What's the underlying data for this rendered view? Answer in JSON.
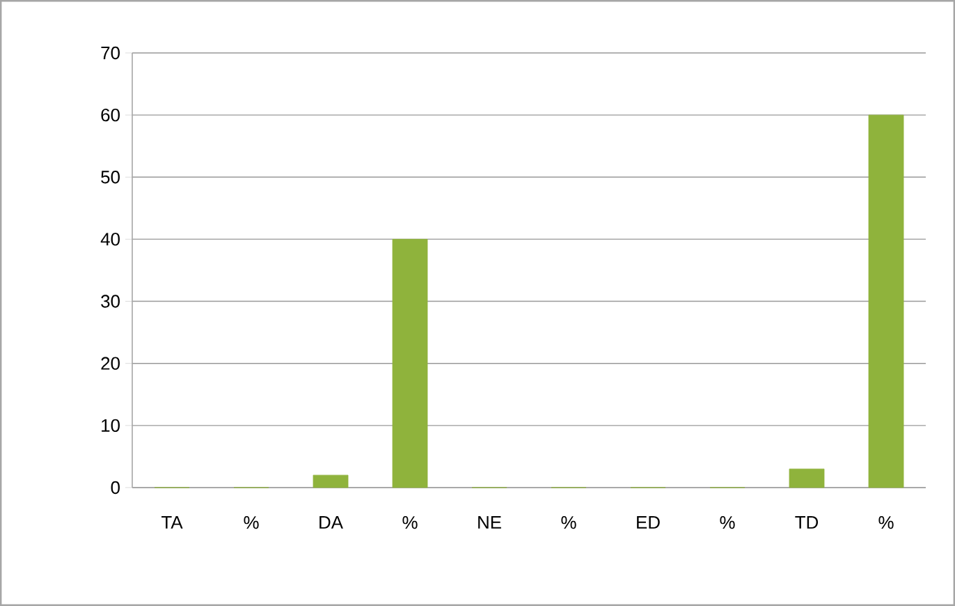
{
  "chart_data": {
    "type": "bar",
    "categories": [
      "TA",
      "%",
      "DA",
      "%",
      "NE",
      "%",
      "ED",
      "%",
      "TD",
      "%"
    ],
    "values": [
      0,
      0,
      2,
      40,
      0,
      0,
      0,
      0,
      3,
      60
    ],
    "color": "#8fb33c",
    "ylim": [
      0,
      70
    ],
    "yticks": [
      0,
      10,
      20,
      30,
      40,
      50,
      60,
      70
    ],
    "grid": "y"
  }
}
